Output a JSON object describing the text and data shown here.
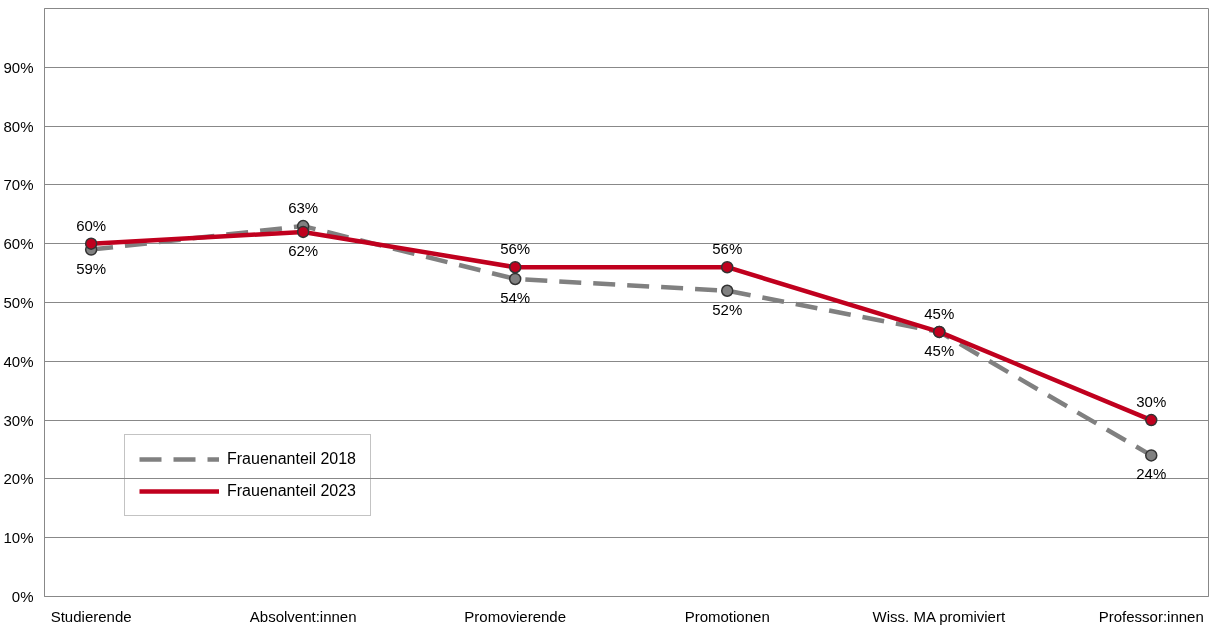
{
  "chart_data": {
    "type": "line",
    "categories": [
      "Studierende",
      "Absolvent:innen",
      "Promovierende",
      "Promotionen",
      "Wiss. MA promiviert",
      "Professor:innen"
    ],
    "series": [
      {
        "name": "Frauenanteil 2018",
        "color": "#808080",
        "line_style": "dashed",
        "values": [
          59,
          63,
          54,
          52,
          45,
          24
        ],
        "value_labels": [
          "59%",
          "63%",
          "54%",
          "52%",
          "45%",
          "24%"
        ]
      },
      {
        "name": "Frauenanteil 2023",
        "color": "#c0001e",
        "line_style": "solid",
        "values": [
          60,
          62,
          56,
          56,
          45,
          30
        ],
        "value_labels": [
          "60%",
          "62%",
          "56%",
          "56%",
          "45%",
          "30%"
        ]
      }
    ],
    "ylim": [
      0,
      100
    ],
    "yticks": [
      {
        "value": 0,
        "label": "0%"
      },
      {
        "value": 10,
        "label": "10%"
      },
      {
        "value": 20,
        "label": "20%"
      },
      {
        "value": 30,
        "label": "30%"
      },
      {
        "value": 40,
        "label": "40%"
      },
      {
        "value": 50,
        "label": "50%"
      },
      {
        "value": 60,
        "label": "60%"
      },
      {
        "value": 70,
        "label": "70%"
      },
      {
        "value": 80,
        "label": "80%"
      },
      {
        "value": 90,
        "label": "90%"
      }
    ],
    "grid": "y",
    "legend": "bottom left",
    "marker": "circle"
  }
}
